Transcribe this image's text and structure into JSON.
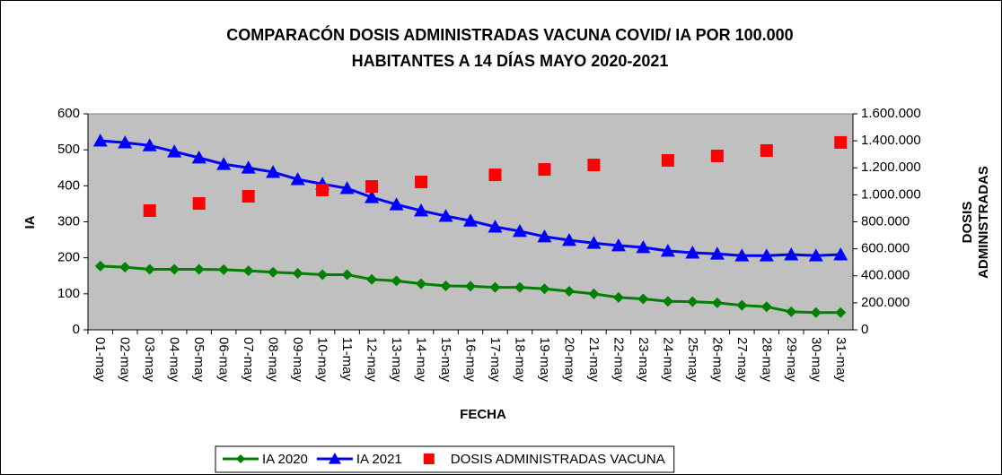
{
  "chart_data": {
    "type": "line",
    "title": [
      "COMPARACÓN DOSIS ADMINISTRADAS VACUNA COVID/ IA POR 100.000",
      "HABITANTES A 14 DÍAS MAYO 2020-2021"
    ],
    "x_label": "FECHA",
    "y_label": "IA",
    "y2_label": [
      "DOSIS",
      "ADMINISTRADAS"
    ],
    "categories": [
      "01-may",
      "02-may",
      "03-may",
      "04-may",
      "05-may",
      "06-may",
      "07-may",
      "08-may",
      "09-may",
      "10-may",
      "11-may",
      "12-may",
      "13-may",
      "14-may",
      "15-may",
      "16-may",
      "17-may",
      "18-may",
      "19-may",
      "20-may",
      "21-may",
      "22-may",
      "23-may",
      "24-may",
      "25-may",
      "26-may",
      "27-may",
      "28-may",
      "29-may",
      "30-may",
      "31-may"
    ],
    "series": [
      {
        "name": "IA 2020",
        "color": "#008000",
        "marker": "diamond",
        "values": [
          177,
          174,
          168,
          168,
          168,
          167,
          164,
          160,
          157,
          153,
          153,
          140,
          136,
          128,
          122,
          121,
          118,
          118,
          114,
          107,
          100,
          90,
          86,
          79,
          78,
          75,
          68,
          64,
          50,
          48,
          48
        ]
      },
      {
        "name": "IA 2021",
        "color": "#0000ff",
        "marker": "triangle",
        "values": [
          525,
          520,
          512,
          495,
          478,
          460,
          450,
          438,
          418,
          405,
          393,
          368,
          348,
          331,
          316,
          303,
          286,
          274,
          259,
          249,
          241,
          234,
          229,
          219,
          214,
          211,
          206,
          206,
          209,
          206,
          209
        ]
      },
      {
        "name": "DOSIS ADMINISTRADAS VACUNA",
        "color": "#ff0000",
        "marker": "square",
        "axis": "y2",
        "line": false,
        "values": [
          null,
          null,
          883000,
          null,
          936000,
          null,
          989000,
          null,
          null,
          1036000,
          null,
          1062000,
          null,
          1095000,
          null,
          null,
          1148000,
          null,
          1188000,
          null,
          1221000,
          null,
          null,
          1255000,
          null,
          1288000,
          null,
          1328000,
          null,
          null,
          1388000
        ]
      }
    ],
    "ylim": [
      0,
      600
    ],
    "yticks": [
      0,
      100,
      200,
      300,
      400,
      500,
      600
    ],
    "y2lim": [
      0,
      1600000
    ],
    "y2ticks": [
      0,
      {
        "value": 200000,
        "label": "200.000"
      },
      {
        "value": 400000,
        "label": "400.000"
      },
      {
        "value": 600000,
        "label": "600.000"
      },
      {
        "value": 800000,
        "label": "800.000"
      },
      {
        "value": 1000000,
        "label": "1.000.000"
      },
      {
        "value": 1200000,
        "label": "1.200.000"
      },
      {
        "value": 1400000,
        "label": "1.400.000"
      },
      {
        "value": 1600000,
        "label": "1.600.000"
      }
    ],
    "legend": "bottom",
    "plot_background": "#c0c0c0"
  }
}
